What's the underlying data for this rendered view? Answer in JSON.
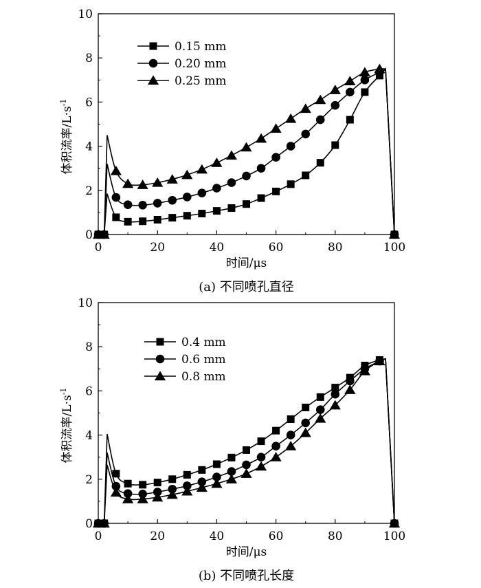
{
  "chart_data": [
    {
      "type": "line",
      "caption": "(a) 不同喷孔直径",
      "xlabel": "时间/μs",
      "ylabel": "体积流率/L·s",
      "ylabel_sup": "-1",
      "xlim": [
        0,
        100
      ],
      "ylim": [
        0,
        10
      ],
      "xticks": [
        "0",
        "20",
        "40",
        "60",
        "80",
        "100"
      ],
      "yticks": [
        "0",
        "2",
        "4",
        "6",
        "8",
        "10"
      ],
      "legend_position": "top-left",
      "series": [
        {
          "name": "0.15 mm",
          "marker": "square",
          "x": [
            0,
            2,
            3,
            6,
            10,
            15,
            20,
            25,
            30,
            35,
            40,
            45,
            50,
            55,
            60,
            65,
            70,
            75,
            80,
            85,
            90,
            95,
            97,
            100
          ],
          "y": [
            0,
            0,
            1.85,
            0.78,
            0.58,
            0.6,
            0.67,
            0.76,
            0.85,
            0.95,
            1.07,
            1.2,
            1.38,
            1.65,
            1.95,
            2.28,
            2.68,
            3.25,
            4.05,
            5.2,
            6.45,
            7.2,
            7.5,
            0
          ]
        },
        {
          "name": "0.20 mm",
          "marker": "circle",
          "x": [
            0,
            2,
            3,
            6,
            10,
            15,
            20,
            25,
            30,
            35,
            40,
            45,
            50,
            55,
            60,
            65,
            70,
            75,
            80,
            85,
            90,
            95,
            97,
            100
          ],
          "y": [
            0,
            0,
            3.2,
            1.68,
            1.35,
            1.33,
            1.42,
            1.55,
            1.7,
            1.88,
            2.1,
            2.35,
            2.65,
            3.0,
            3.5,
            4.0,
            4.55,
            5.2,
            5.85,
            6.45,
            7.0,
            7.35,
            7.5,
            0
          ]
        },
        {
          "name": "0.25 mm",
          "marker": "triangle",
          "x": [
            0,
            2,
            3,
            6,
            10,
            15,
            20,
            25,
            30,
            35,
            40,
            45,
            50,
            55,
            60,
            65,
            70,
            75,
            80,
            85,
            90,
            95,
            97,
            100
          ],
          "y": [
            0,
            0,
            4.5,
            2.88,
            2.3,
            2.25,
            2.35,
            2.5,
            2.7,
            2.95,
            3.25,
            3.58,
            3.95,
            4.35,
            4.8,
            5.25,
            5.7,
            6.1,
            6.55,
            6.95,
            7.35,
            7.5,
            7.5,
            0
          ]
        }
      ]
    },
    {
      "type": "line",
      "caption": "(b) 不同喷孔长度",
      "xlabel": "时间/μs",
      "ylabel": "体积流率/L·s",
      "ylabel_sup": "-1",
      "xlim": [
        0,
        100
      ],
      "ylim": [
        0,
        10
      ],
      "xticks": [
        "0",
        "20",
        "40",
        "60",
        "80",
        "100"
      ],
      "yticks": [
        "0",
        "2",
        "4",
        "6",
        "8",
        "10"
      ],
      "legend_position": "top-left",
      "series": [
        {
          "name": "0.4 mm",
          "marker": "square",
          "x": [
            0,
            2,
            3,
            6,
            10,
            15,
            20,
            25,
            30,
            35,
            40,
            45,
            50,
            55,
            60,
            65,
            70,
            75,
            80,
            85,
            90,
            95,
            97,
            100
          ],
          "y": [
            0,
            0,
            4.05,
            2.25,
            1.8,
            1.75,
            1.85,
            2.0,
            2.2,
            2.42,
            2.68,
            2.98,
            3.32,
            3.72,
            4.2,
            4.72,
            5.25,
            5.72,
            6.15,
            6.6,
            7.15,
            7.4,
            7.45,
            0
          ]
        },
        {
          "name": "0.6 mm",
          "marker": "circle",
          "x": [
            0,
            2,
            3,
            6,
            10,
            15,
            20,
            25,
            30,
            35,
            40,
            45,
            50,
            55,
            60,
            65,
            70,
            75,
            80,
            85,
            90,
            95,
            97,
            100
          ],
          "y": [
            0,
            0,
            3.2,
            1.68,
            1.35,
            1.33,
            1.42,
            1.55,
            1.7,
            1.88,
            2.1,
            2.35,
            2.65,
            3.0,
            3.5,
            4.0,
            4.55,
            5.15,
            5.85,
            6.45,
            7.0,
            7.35,
            7.45,
            0
          ]
        },
        {
          "name": "0.8 mm",
          "marker": "triangle",
          "x": [
            0,
            2,
            3,
            6,
            10,
            15,
            20,
            25,
            30,
            35,
            40,
            45,
            50,
            55,
            60,
            65,
            70,
            75,
            80,
            85,
            90,
            95,
            97,
            100
          ],
          "y": [
            0,
            0,
            2.65,
            1.4,
            1.1,
            1.1,
            1.18,
            1.3,
            1.45,
            1.62,
            1.8,
            2.0,
            2.25,
            2.58,
            3.0,
            3.5,
            4.1,
            4.75,
            5.35,
            6.05,
            6.9,
            7.35,
            7.45,
            0
          ]
        }
      ]
    }
  ]
}
